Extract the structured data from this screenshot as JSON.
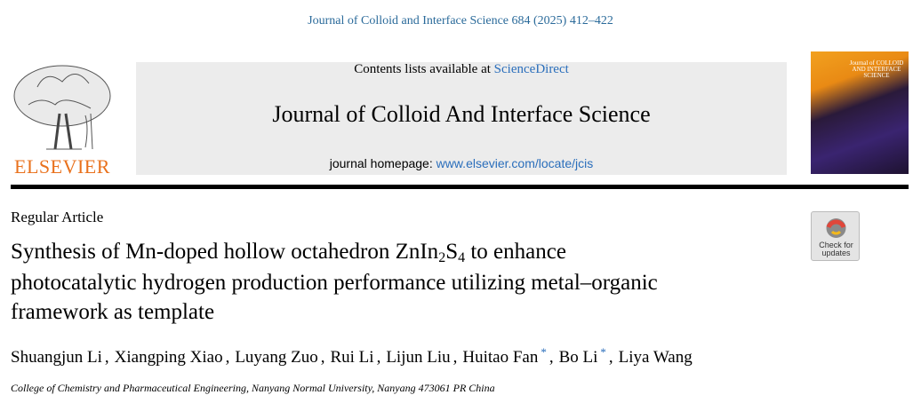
{
  "header": {
    "citation": "Journal of Colloid and Interface Science 684 (2025) 412–422",
    "contents_prefix": "Contents lists available at ",
    "contents_link": "ScienceDirect",
    "journal_title": "Journal of Colloid And Interface Science",
    "homepage_prefix": "journal homepage: ",
    "homepage_link": "www.elsevier.com/locate/jcis",
    "publisher": "ELSEVIER",
    "cover_title": "Journal of COLLOID AND INTERFACE SCIENCE"
  },
  "article": {
    "type": "Regular Article",
    "title": {
      "line1": {
        "before": "Synthesis of Mn-doped hollow octahedron ZnIn",
        "sub1": "2",
        "mid": "S",
        "sub2": "4",
        "after": " to enhance"
      },
      "line2": "photocatalytic hydrogen production performance utilizing metal–organic",
      "line3": "framework as template"
    },
    "check_updates": "Check for updates",
    "authors": {
      "separator": ",",
      "list": [
        {
          "name": "Shuangjun Li"
        },
        {
          "name": "Xiangping Xiao"
        },
        {
          "name": "Luyang Zuo"
        },
        {
          "name": "Rui Li"
        },
        {
          "name": "Lijun Liu"
        },
        {
          "name": "Huitao Fan",
          "note": "*"
        },
        {
          "name": "Bo Li",
          "note": "*"
        },
        {
          "name": "Liya Wang"
        }
      ]
    },
    "affiliation": "College of Chemistry and Pharmaceutical Engineering, Nanyang Normal University, Nanyang 473061 PR China"
  }
}
